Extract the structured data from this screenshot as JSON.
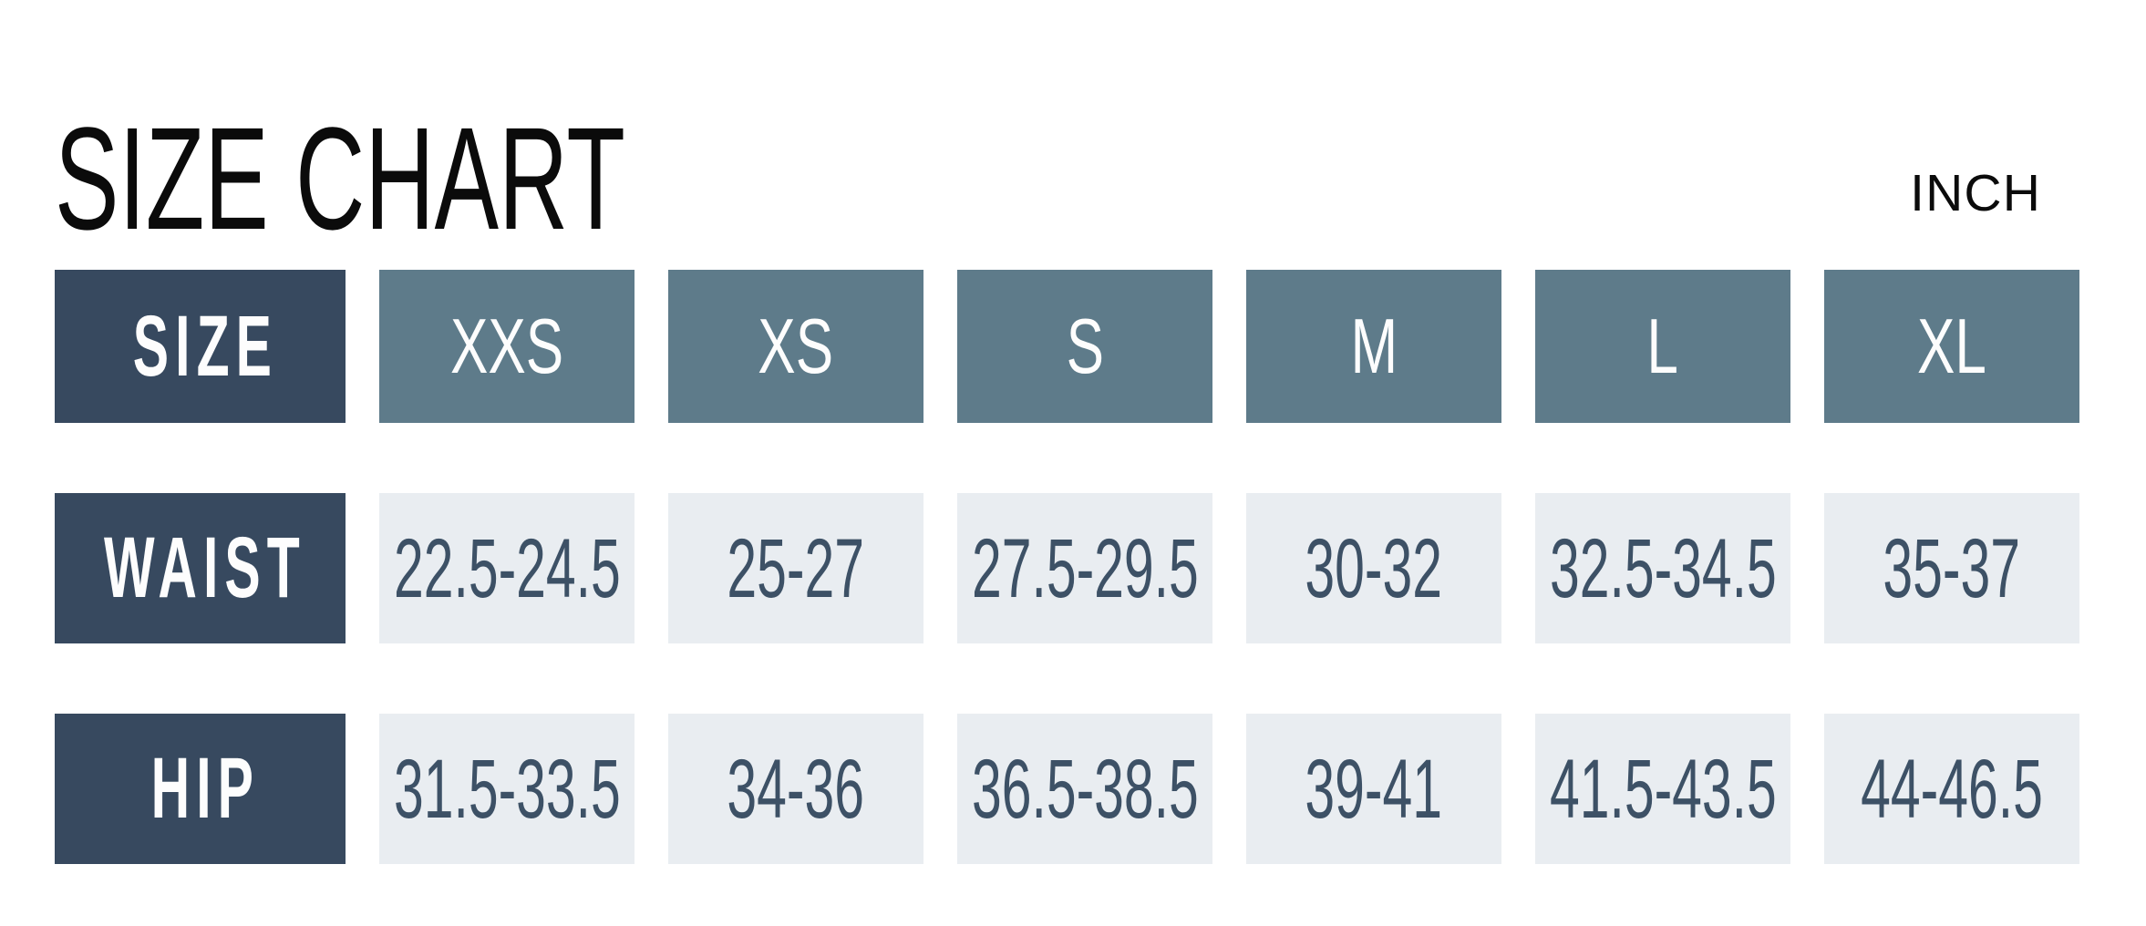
{
  "page": {
    "title": "SIZE CHART",
    "unit_label": "INCH"
  },
  "chart_data": {
    "type": "table",
    "title": "SIZE CHART",
    "unit": "INCH",
    "columns": [
      "SIZE",
      "XXS",
      "XS",
      "S",
      "M",
      "L",
      "XL"
    ],
    "rows": [
      {
        "label": "WAIST",
        "values": [
          "22.5-24.5",
          "25-27",
          "27.5-29.5",
          "30-32",
          "32.5-34.5",
          "35-37"
        ]
      },
      {
        "label": "HIP",
        "values": [
          "31.5-33.5",
          "34-36",
          "36.5-38.5",
          "39-41",
          "41.5-43.5",
          "44-46.5"
        ]
      }
    ],
    "layout_hints": {
      "row_order": [
        "SIZE",
        "WAIST",
        "HIP"
      ],
      "grid": "off",
      "legend": "none"
    }
  },
  "colors": {
    "background": "#ffffff",
    "row_label_bg": "#37495f",
    "size_header_bg": "#5e7b8a",
    "value_cell_bg": "#e9edf1",
    "value_text": "#3d5166",
    "header_text": "#fdfdfd",
    "title_text": "#0b0b0b"
  }
}
